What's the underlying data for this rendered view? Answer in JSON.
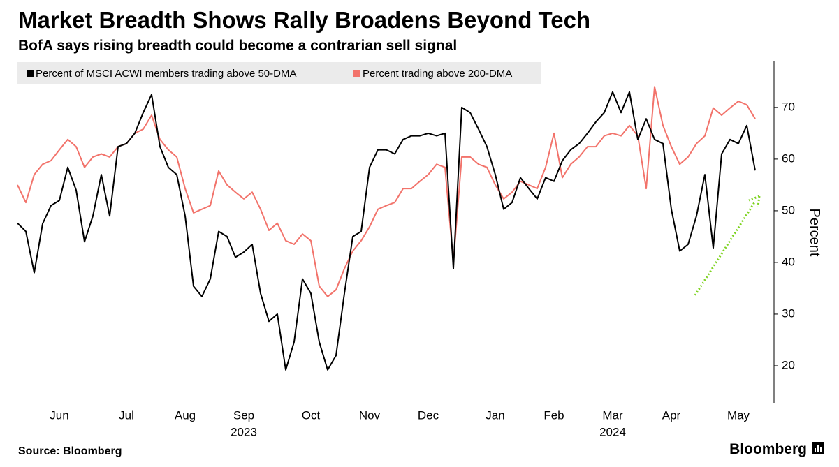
{
  "chart_data": {
    "type": "line",
    "title": "Market Breadth Shows Rally Broadens Beyond Tech",
    "subtitle": "BofA says rising breadth could become a contrarian sell signal",
    "y_label": "Percent",
    "source": "Source: Bloomberg",
    "brand": "Bloomberg",
    "categories": [
      null,
      null,
      null,
      null,
      null,
      "Jun",
      null,
      null,
      null,
      null,
      null,
      null,
      null,
      "Jul",
      null,
      null,
      null,
      null,
      null,
      null,
      "Aug",
      null,
      null,
      null,
      null,
      null,
      null,
      "Sep",
      null,
      null,
      null,
      null,
      null,
      null,
      null,
      "Oct",
      null,
      null,
      null,
      null,
      null,
      null,
      "Nov",
      null,
      null,
      null,
      null,
      null,
      null,
      "Dec",
      null,
      null,
      null,
      null,
      null,
      null,
      null,
      "Jan",
      null,
      null,
      null,
      null,
      null,
      null,
      "Feb",
      null,
      null,
      null,
      null,
      null,
      null,
      "Mar",
      null,
      null,
      null,
      null,
      null,
      null,
      "Apr",
      null,
      null,
      null,
      null,
      null,
      null,
      null,
      "May",
      null,
      null
    ],
    "category_years": [
      null,
      null,
      null,
      null,
      null,
      null,
      null,
      null,
      null,
      null,
      null,
      null,
      null,
      null,
      null,
      null,
      null,
      null,
      null,
      null,
      null,
      null,
      null,
      null,
      null,
      null,
      null,
      "2023",
      null,
      null,
      null,
      null,
      null,
      null,
      null,
      null,
      null,
      null,
      null,
      null,
      null,
      null,
      null,
      null,
      null,
      null,
      null,
      null,
      null,
      null,
      null,
      null,
      null,
      null,
      null,
      null,
      null,
      null,
      null,
      null,
      null,
      null,
      null,
      null,
      null,
      null,
      null,
      null,
      null,
      null,
      null,
      "2024",
      null,
      null,
      null,
      null,
      null,
      null,
      null,
      null,
      null,
      null,
      null,
      null,
      null,
      null,
      null,
      null,
      null
    ],
    "series": [
      {
        "name": "Percent of MSCI ACWI members trading above 50-DMA",
        "color": "#000000",
        "values": [
          47.6,
          46,
          38,
          47.5,
          51,
          52,
          58.4,
          54,
          44,
          49,
          57,
          49,
          62.4,
          63,
          65,
          69,
          72.5,
          62.4,
          58.4,
          57,
          49,
          35.4,
          33.4,
          36.8,
          46,
          45,
          41,
          42,
          43.5,
          34,
          28.6,
          30,
          19.2,
          24.6,
          36.8,
          34,
          24.6,
          19.2,
          22,
          34,
          45,
          46,
          58.4,
          61.8,
          61.8,
          61,
          63.8,
          64.5,
          64.5,
          65,
          64.5,
          65,
          38.8,
          70,
          69,
          65.8,
          62.4,
          57,
          50.3,
          51.6,
          56.4,
          54.3,
          52.3,
          56.4,
          55.7,
          59.7,
          61.8,
          63,
          65,
          67.2,
          69,
          73,
          69,
          73,
          63.8,
          67.8,
          63.8,
          63,
          50.3,
          42.2,
          43.5,
          49,
          57,
          42.8,
          61,
          63.8,
          63,
          66.5,
          57.8
        ]
      },
      {
        "name": "Percent trading above 200-DMA",
        "color": "#f2736b",
        "values": [
          55,
          51.6,
          57,
          59,
          59.7,
          61.8,
          63.8,
          62.4,
          58.4,
          60.4,
          61,
          60.4,
          62.4,
          63,
          65,
          65.8,
          68.5,
          63.8,
          61.8,
          60.4,
          54.3,
          49.6,
          50.3,
          51,
          57.7,
          55,
          53.6,
          52.3,
          53.6,
          50.3,
          46.2,
          47.6,
          44.2,
          43.5,
          45.5,
          44.2,
          35.4,
          33.4,
          34.7,
          38.8,
          42.2,
          44.2,
          46.9,
          50.3,
          51,
          51.6,
          54.3,
          54.3,
          55.7,
          57,
          59,
          58.4,
          40.1,
          60.4,
          60.4,
          59,
          58.4,
          55,
          52.3,
          53.6,
          55.7,
          55,
          54.3,
          58.4,
          65,
          56.4,
          59,
          60.4,
          62.4,
          62.4,
          64.5,
          65,
          64.5,
          66.5,
          64.5,
          54.3,
          74,
          66.5,
          62.4,
          59,
          60.4,
          63,
          64.5,
          69.9,
          68.5,
          69.9,
          71.2,
          70.5,
          67.8
        ]
      }
    ],
    "ylim": [
      12.7,
      78.9
    ],
    "yticks": [
      20,
      30,
      40,
      50,
      60,
      70
    ],
    "y_axis_side": "right",
    "grid": false
  }
}
